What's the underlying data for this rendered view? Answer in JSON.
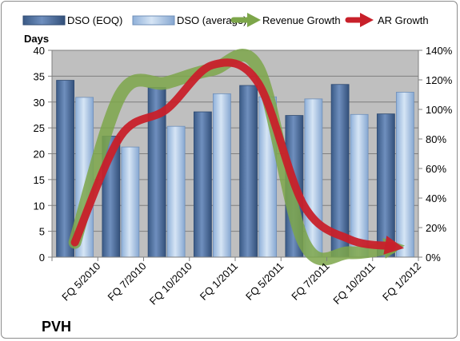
{
  "chart_data": {
    "type": "bar",
    "title": "PVH",
    "ylabel": "Days",
    "y2label": "",
    "ylim": [
      0,
      40
    ],
    "y2lim": [
      0,
      140
    ],
    "yticks": [
      0,
      5,
      10,
      15,
      20,
      25,
      30,
      35,
      40
    ],
    "y2ticks": [
      "0%",
      "20%",
      "40%",
      "60%",
      "80%",
      "100%",
      "120%",
      "140%"
    ],
    "grid": true,
    "legend_position": "top",
    "categories": [
      "FQ 5/2010",
      "FQ 7/2010",
      "FQ 10/2010",
      "FQ 1/2011",
      "FQ 5/2011",
      "FQ 7/2011",
      "FQ 10/2011",
      "FQ 1/2012"
    ],
    "series": [
      {
        "name": "DSO (EOQ)",
        "kind": "bar",
        "axis": "left",
        "color": "#4a6b99",
        "values": [
          34.2,
          23.4,
          32.8,
          28.1,
          33.2,
          27.4,
          33.4,
          27.7
        ]
      },
      {
        "name": "DSO (average)",
        "kind": "bar",
        "axis": "left",
        "color": "#a9c3e3",
        "values": [
          30.9,
          21.3,
          25.3,
          31.6,
          31.0,
          30.6,
          27.6,
          31.9
        ]
      },
      {
        "name": "Revenue Growth",
        "kind": "arrow",
        "axis": "right",
        "color": "#7da64a",
        "unit": "%",
        "values": [
          10,
          110,
          118,
          127,
          128,
          10,
          3,
          7
        ]
      },
      {
        "name": "AR Growth",
        "kind": "arrow",
        "axis": "right",
        "color": "#c8202a",
        "unit": "%",
        "values": [
          10,
          82,
          100,
          130,
          118,
          35,
          12,
          7
        ]
      }
    ]
  },
  "colors": {
    "plot_background": "#bfbfbf",
    "gridline": "#7f7f7f"
  }
}
